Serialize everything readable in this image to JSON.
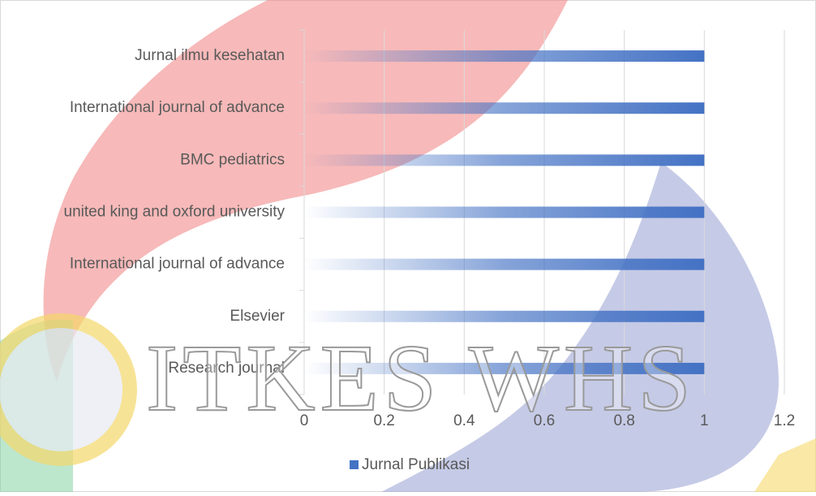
{
  "chart_data": {
    "type": "bar",
    "orientation": "horizontal",
    "categories": [
      "Jurnal ilmu kesehatan",
      "International journal of advance",
      "BMC pediatrics",
      "united king and oxford university",
      "International journal of advance",
      "Elsevier",
      "Research journal"
    ],
    "series": [
      {
        "name": "Jurnal Publikasi",
        "color": "#4472c4",
        "values": [
          1,
          1,
          1,
          1,
          1,
          1,
          1
        ]
      }
    ],
    "xlim": [
      0,
      1.2
    ],
    "xticks": [
      0,
      0.2,
      0.4,
      0.6,
      0.8,
      1,
      1.2
    ],
    "grid": true,
    "legend": "bottom"
  },
  "watermark": "ITKES WHS"
}
